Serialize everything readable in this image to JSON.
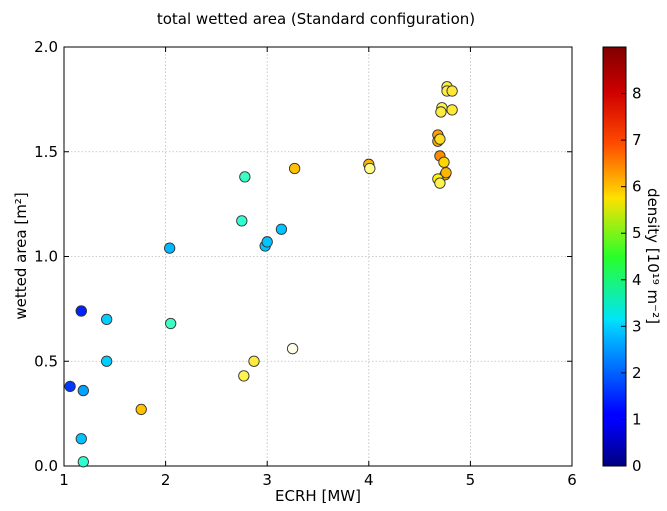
{
  "chart_data": {
    "type": "scatter",
    "title": "total wetted area (Standard configuration)",
    "xlabel": "ECRH [MW]",
    "ylabel": "wetted area [m²]",
    "xlim": [
      1,
      6
    ],
    "ylim": [
      0.0,
      2.0
    ],
    "xticks": [
      "1",
      "2",
      "3",
      "4",
      "5",
      "6"
    ],
    "yticks": [
      "0.0",
      "0.5",
      "1.0",
      "1.5",
      "2.0"
    ],
    "grid": true,
    "colorbar": {
      "label": "density [10¹⁹ m⁻²]",
      "range": [
        0,
        9
      ],
      "ticks": [
        "0",
        "1",
        "2",
        "3",
        "4",
        "5",
        "6",
        "7",
        "8"
      ],
      "colormap": "jet"
    },
    "points": [
      {
        "x": 1.06,
        "y": 0.38,
        "density": 1.7
      },
      {
        "x": 1.17,
        "y": 0.74,
        "density": 1.1
      },
      {
        "x": 1.17,
        "y": 0.74,
        "density": 1.5
      },
      {
        "x": 1.19,
        "y": 0.36,
        "density": 2.7
      },
      {
        "x": 1.17,
        "y": 0.13,
        "density": 3.0
      },
      {
        "x": 1.19,
        "y": 0.02,
        "density": 4.0
      },
      {
        "x": 1.42,
        "y": 0.7,
        "density": 3.1
      },
      {
        "x": 1.42,
        "y": 0.5,
        "density": 3.1
      },
      {
        "x": 1.76,
        "y": 0.27,
        "density": 6.5
      },
      {
        "x": 2.04,
        "y": 1.04,
        "density": 2.9
      },
      {
        "x": 2.05,
        "y": 0.68,
        "density": 4.1
      },
      {
        "x": 2.75,
        "y": 1.17,
        "density": 4.0
      },
      {
        "x": 2.78,
        "y": 1.38,
        "density": 4.1
      },
      {
        "x": 2.77,
        "y": 0.43,
        "density": 8.0
      },
      {
        "x": 2.87,
        "y": 0.5,
        "density": 7.8
      },
      {
        "x": 2.98,
        "y": 1.05,
        "density": 3.0
      },
      {
        "x": 3.0,
        "y": 1.07,
        "density": 3.0
      },
      {
        "x": 3.14,
        "y": 1.13,
        "density": 3.0
      },
      {
        "x": 3.25,
        "y": 0.56,
        "density": 8.9
      },
      {
        "x": 3.27,
        "y": 1.42,
        "density": 6.5
      },
      {
        "x": 4.0,
        "y": 1.44,
        "density": 6.6
      },
      {
        "x": 4.01,
        "y": 1.42,
        "density": 8.5
      },
      {
        "x": 4.68,
        "y": 1.58,
        "density": 6.8
      },
      {
        "x": 4.68,
        "y": 1.55,
        "density": 6.7
      },
      {
        "x": 4.7,
        "y": 1.56,
        "density": 7.4
      },
      {
        "x": 4.7,
        "y": 1.48,
        "density": 7.0
      },
      {
        "x": 4.74,
        "y": 1.45,
        "density": 6.3
      },
      {
        "x": 4.75,
        "y": 1.39,
        "density": 6.4
      },
      {
        "x": 4.76,
        "y": 1.4,
        "density": 6.6
      },
      {
        "x": 4.68,
        "y": 1.37,
        "density": 6.0
      },
      {
        "x": 4.7,
        "y": 1.35,
        "density": 8.0
      },
      {
        "x": 4.77,
        "y": 1.81,
        "density": 7.8
      },
      {
        "x": 4.77,
        "y": 1.79,
        "density": 7.9
      },
      {
        "x": 4.82,
        "y": 1.79,
        "density": 7.7
      },
      {
        "x": 4.72,
        "y": 1.71,
        "density": 8.0
      },
      {
        "x": 4.71,
        "y": 1.69,
        "density": 7.8
      },
      {
        "x": 4.82,
        "y": 1.7,
        "density": 7.7
      }
    ]
  }
}
